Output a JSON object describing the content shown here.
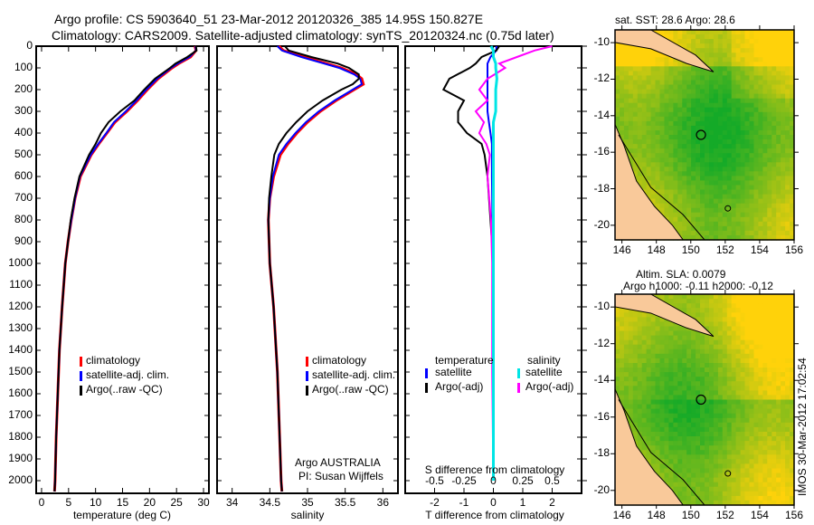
{
  "title1": "Argo profile: CS 5903640_51 23-Mar-2012 20120326_385 14.95S 150.827E",
  "title2": "Climatology: CARS2009. Satellite-adjusted climatology: synTS_20120324.nc (0.75d later)",
  "colors": {
    "clim": "#ff0000",
    "sat": "#0000ff",
    "argo": "#000000",
    "s_sat": "#00e5e5",
    "s_argo": "#ff00ff",
    "land": "#f9c99a"
  },
  "chart_data": [
    {
      "type": "line",
      "xlabel": "temperature (deg C)",
      "ylabel": "",
      "xlim": [
        -1,
        31
      ],
      "ylim": [
        2050,
        0
      ],
      "xticks": [
        "0",
        "5",
        "10",
        "15",
        "20",
        "25",
        "30"
      ],
      "yticks": [
        "0",
        "100",
        "200",
        "300",
        "400",
        "500",
        "600",
        "700",
        "800",
        "900",
        "1000",
        "1100",
        "1200",
        "1300",
        "1400",
        "1500",
        "1600",
        "1700",
        "1800",
        "1900",
        "2000"
      ],
      "legend": [
        "climatology",
        "satellite-adj. clim.",
        "Argo(..raw -QC)"
      ],
      "depth": [
        0,
        20,
        50,
        80,
        100,
        150,
        200,
        250,
        300,
        350,
        400,
        450,
        500,
        600,
        700,
        800,
        900,
        1000,
        1200,
        1400,
        1600,
        1800,
        2000,
        2050
      ],
      "series": [
        {
          "name": "climatology",
          "values": [
            28.4,
            28.6,
            27.6,
            25.4,
            24.2,
            21.6,
            19.6,
            17.8,
            15.8,
            13.6,
            12.1,
            10.6,
            9.2,
            7.2,
            6.2,
            5.5,
            4.9,
            4.4,
            3.8,
            3.3,
            3.0,
            2.7,
            2.5,
            2.4
          ]
        },
        {
          "name": "satellite-adj. clim.",
          "values": [
            28.5,
            28.6,
            27.4,
            25.2,
            24.0,
            21.4,
            19.4,
            17.6,
            15.6,
            13.4,
            12.0,
            10.5,
            9.1,
            7.1,
            6.2,
            5.5,
            4.9,
            4.4,
            3.8,
            3.3,
            3.0,
            2.7,
            2.5,
            2.4
          ]
        },
        {
          "name": "Argo(..raw -QC)",
          "values": [
            28.6,
            28.7,
            27.0,
            24.8,
            23.8,
            21.0,
            19.0,
            17.2,
            14.6,
            12.4,
            11.0,
            10.0,
            8.8,
            7.0,
            6.1,
            5.4,
            4.9,
            4.4,
            3.8,
            3.3,
            3.0,
            2.7,
            2.5,
            2.4
          ]
        }
      ]
    },
    {
      "type": "line",
      "xlabel": "salinity",
      "xlim": [
        33.7,
        36.3
      ],
      "ylim": [
        2050,
        0
      ],
      "xticks": [
        "34",
        "34.5",
        "35",
        "35.5",
        "36"
      ],
      "legend": [
        "climatology",
        "satellite-adj. clim.",
        "Argo(..raw -QC)"
      ],
      "annotation": [
        "Argo AUSTRALIA",
        "PI: Susan Wijffels"
      ],
      "depth": [
        0,
        20,
        50,
        80,
        100,
        130,
        150,
        175,
        200,
        250,
        300,
        350,
        400,
        450,
        500,
        600,
        700,
        800,
        1000,
        1200,
        1500,
        1800,
        2000,
        2050
      ],
      "series": [
        {
          "name": "climatology",
          "values": [
            34.62,
            34.68,
            34.95,
            35.25,
            35.45,
            35.65,
            35.72,
            35.74,
            35.62,
            35.38,
            35.17,
            35.0,
            34.86,
            34.74,
            34.64,
            34.55,
            34.5,
            34.48,
            34.5,
            34.55,
            34.6,
            34.63,
            34.65,
            34.66
          ]
        },
        {
          "name": "satellite-adj. clim.",
          "values": [
            34.6,
            34.66,
            34.92,
            35.22,
            35.42,
            35.62,
            35.7,
            35.72,
            35.6,
            35.36,
            35.15,
            34.98,
            34.84,
            34.72,
            34.62,
            34.54,
            34.5,
            34.48,
            34.5,
            34.55,
            34.6,
            34.63,
            34.65,
            34.66
          ]
        },
        {
          "name": "Argo(..raw -QC)",
          "values": [
            34.7,
            34.75,
            35.05,
            35.4,
            35.55,
            35.68,
            35.68,
            35.6,
            35.45,
            35.2,
            35.0,
            34.85,
            34.72,
            34.62,
            34.56,
            34.52,
            34.49,
            34.48,
            34.5,
            34.55,
            34.6,
            34.63,
            34.65,
            34.66
          ]
        }
      ]
    },
    {
      "type": "line",
      "xlabel": "T difference from climatology",
      "x2label": "S difference from climatology",
      "xlim": [
        -2.8,
        2.8
      ],
      "x2lim": [
        -0.7,
        0.7
      ],
      "ylim": [
        2050,
        0
      ],
      "xticks": [
        "-2",
        "-1",
        "0",
        "1",
        "2"
      ],
      "x2ticks": [
        "-0.5",
        "-0.25",
        "0",
        "0.25",
        "0.5"
      ],
      "legend": {
        "temperature": "temperature",
        "salinity": "salinity",
        "t_sat": "satellite",
        "t_argo": "Argo(-adj)",
        "s_sat": "satellite",
        "s_argo": "Argo(-adj)"
      },
      "depth": [
        0,
        20,
        50,
        80,
        100,
        150,
        200,
        250,
        300,
        350,
        400,
        450,
        500,
        600,
        800,
        1000,
        1500,
        2000
      ],
      "series": [
        {
          "name": "T satellite",
          "values": [
            0.1,
            0.1,
            -0.1,
            -0.2,
            -0.2,
            -0.2,
            -0.2,
            -0.2,
            -0.2,
            -0.15,
            -0.1,
            -0.05,
            -0.05,
            -0.05,
            -0.03,
            0,
            0,
            0
          ]
        },
        {
          "name": "T Argo(-adj)",
          "values": [
            0.2,
            0.1,
            -0.4,
            -0.6,
            -0.8,
            -1.5,
            -1.7,
            -1.0,
            -1.2,
            -1.2,
            -0.9,
            -0.4,
            -0.3,
            -0.2,
            -0.1,
            0,
            0,
            0
          ]
        },
        {
          "name": "S satellite",
          "values": [
            -0.02,
            0.0,
            0.0,
            0.02,
            0.02,
            0.03,
            0.02,
            0.02,
            0.02,
            0.0,
            0.0,
            0.0,
            0.0,
            0.0,
            0.0,
            0.0,
            0.0,
            0.0
          ]
        },
        {
          "name": "S Argo(-adj)",
          "values": [
            0.5,
            0.35,
            0.2,
            0.05,
            0.1,
            -0.05,
            -0.12,
            -0.05,
            -0.15,
            -0.08,
            -0.12,
            -0.06,
            -0.03,
            -0.05,
            -0.02,
            -0.01,
            -0.01,
            0
          ]
        }
      ]
    }
  ],
  "map1": {
    "title": "sat. SST: 28.6 Argo: 28.6",
    "lon_ticks": [
      "146",
      "148",
      "150",
      "152",
      "154",
      "156"
    ],
    "lat_ticks": [
      "-10",
      "-12",
      "-14",
      "-16",
      "-18",
      "-20"
    ]
  },
  "map2": {
    "title1": "Altim. SLA: 0.0079",
    "title2": "Argo h1000: -0.11 h2000: -0.12",
    "lon_ticks": [
      "146",
      "148",
      "150",
      "152",
      "154",
      "156"
    ],
    "lat_ticks": [
      "-10",
      "-12",
      "-14",
      "-16",
      "-18",
      "-20"
    ]
  },
  "footer": "IMOS 30-Mar-2012 17:02:54"
}
